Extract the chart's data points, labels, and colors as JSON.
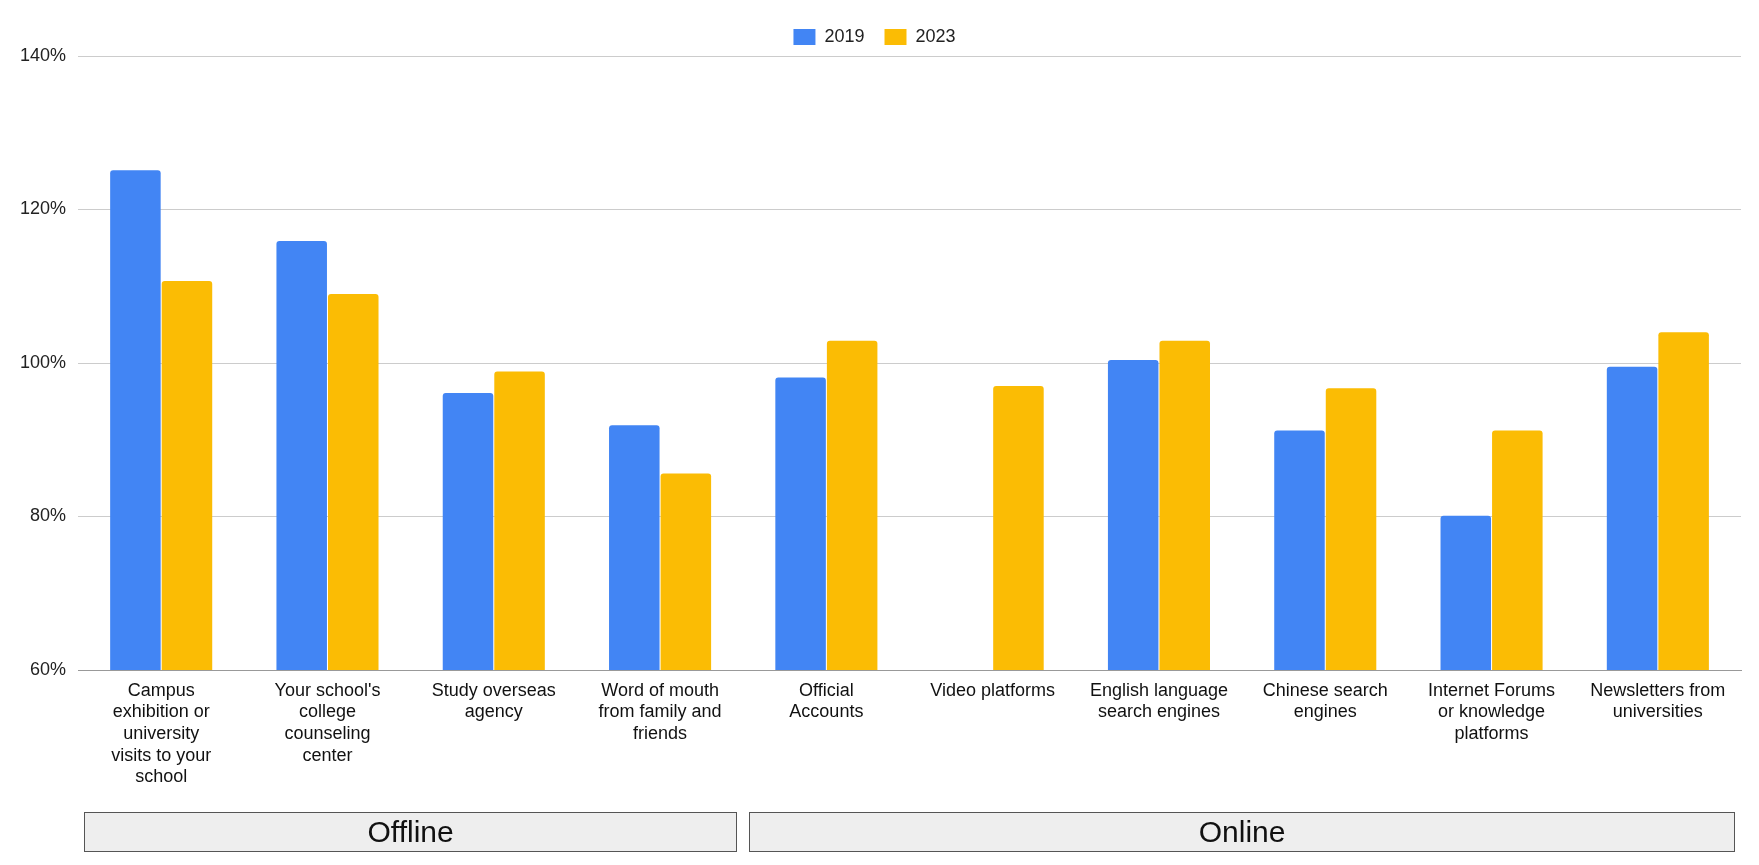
{
  "chart_data": {
    "type": "bar",
    "categories": [
      "Campus exhibition or university visits to your school",
      "Your school's college counseling center",
      "Study overseas agency",
      "Word of mouth from family and friends",
      "Official Accounts",
      "Video platforms",
      "English language search engines",
      "Chinese search engines",
      "Internet Forums or knowledge platforms",
      "Newsletters from universities"
    ],
    "series": [
      {
        "name": "2019",
        "color": "#4285f4",
        "values": [
          125.1,
          115.9,
          96.1,
          91.9,
          98.1,
          null,
          100.4,
          91.2,
          80.1,
          99.5
        ]
      },
      {
        "name": "2023",
        "color": "#fbbc04",
        "values": [
          110.7,
          109.0,
          98.9,
          85.6,
          102.9,
          97.0,
          102.9,
          96.7,
          91.2,
          104.0
        ]
      }
    ],
    "ylim": [
      60,
      140
    ],
    "yticks": [
      {
        "value": 60,
        "label": "60%"
      },
      {
        "value": 80,
        "label": "80%"
      },
      {
        "value": 100,
        "label": "100%"
      },
      {
        "value": 120,
        "label": "120%"
      },
      {
        "value": 140,
        "label": "140%"
      }
    ],
    "grid": "y",
    "legend": "top",
    "annotations": [
      "Offline",
      "Online"
    ]
  }
}
